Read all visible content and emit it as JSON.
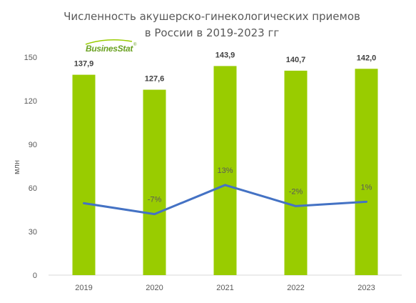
{
  "chart_data": {
    "type": "bar",
    "title_line1": "Численность акушерско-гинекологических приемов",
    "title_line2": "в России в 2019-2023 гг",
    "ylabel": "млн",
    "categories": [
      "2019",
      "2020",
      "2021",
      "2022",
      "2023"
    ],
    "series": [
      {
        "values": [
          137.9,
          127.6,
          143.9,
          140.7,
          142.0
        ],
        "labels": [
          "137,9",
          "127,6",
          "143,9",
          "140,7",
          "142,0"
        ],
        "color": "#99cc00"
      }
    ],
    "growth_line": {
      "labels": [
        "",
        "-7%",
        "13%",
        "-2%",
        "1%"
      ],
      "plot_levels": [
        49.5,
        42.0,
        62.0,
        47.5,
        50.5
      ],
      "color": "#4472c4"
    },
    "ylim": [
      0,
      150
    ],
    "yticks": [
      "0",
      "30",
      "60",
      "90",
      "120",
      "150"
    ],
    "legend": "none"
  },
  "logo": {
    "text": "BusinesStat",
    "mark": "®",
    "color": "#6aa121"
  }
}
